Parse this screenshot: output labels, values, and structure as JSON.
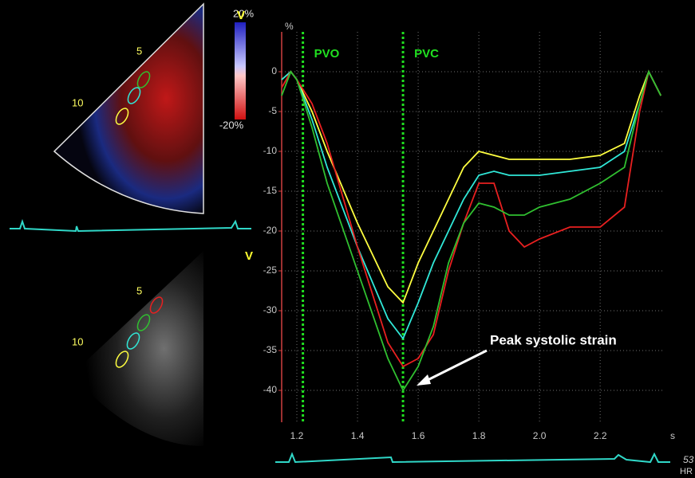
{
  "chart_data": {
    "type": "line",
    "y_unit": "%",
    "x_unit": "s",
    "x": [
      1.15,
      1.18,
      1.2,
      1.25,
      1.3,
      1.4,
      1.5,
      1.55,
      1.6,
      1.65,
      1.7,
      1.75,
      1.8,
      1.85,
      1.9,
      1.95,
      2.0,
      2.1,
      2.2,
      2.28,
      2.33,
      2.36,
      2.4
    ],
    "series": [
      {
        "color": "#ffff40",
        "values": [
          -1,
          0,
          -1,
          -5,
          -10,
          -19,
          -27,
          -29,
          -24,
          -20,
          -16,
          -12,
          -10,
          -10.5,
          -11,
          -11,
          -11,
          -11,
          -10.5,
          -9,
          -3,
          0,
          -3
        ]
      },
      {
        "color": "#30e8d8",
        "values": [
          -1,
          0,
          -1,
          -6,
          -12,
          -22,
          -31,
          -33.5,
          -29,
          -24,
          -20,
          -16,
          -13,
          -12.5,
          -13,
          -13,
          -13,
          -12.5,
          -12,
          -10,
          -4,
          0,
          -3
        ]
      },
      {
        "color": "#e82020",
        "values": [
          -2,
          0,
          -1,
          -4,
          -9,
          -22,
          -34,
          -37,
          -36,
          -33,
          -25,
          -19,
          -14,
          -14,
          -20,
          -22,
          -21,
          -19.5,
          -19.5,
          -17,
          -5,
          0,
          -3
        ]
      },
      {
        "color": "#30c030",
        "values": [
          -3,
          0,
          -1,
          -7,
          -14,
          -25,
          -36,
          -40,
          -37,
          -32,
          -24,
          -19,
          -16.5,
          -17,
          -18,
          -18,
          -17,
          -16,
          -14,
          -12,
          -4,
          0,
          -3
        ]
      }
    ],
    "markers": [
      {
        "label": "PVO",
        "x": 1.22
      },
      {
        "label": "PVC",
        "x": 1.55
      }
    ],
    "annotation": "Peak systolic strain",
    "xlim": [
      1.15,
      2.41
    ],
    "ylim": [
      -44,
      5
    ],
    "xticks": [
      1.2,
      1.4,
      1.6,
      1.8,
      {
        "value": 2,
        "label": "2.0"
      },
      2.2
    ],
    "yticks": [
      0,
      -5,
      -10,
      -15,
      -20,
      -25,
      -30,
      -35,
      -40
    ],
    "grid": true
  },
  "echo_panel": {
    "scale_top": "20%",
    "scale_bottom": "-20%",
    "segment_labels": [
      "5",
      "10"
    ],
    "view_marker": "V",
    "heart_rate": "53",
    "heart_rate_unit": "HR"
  }
}
